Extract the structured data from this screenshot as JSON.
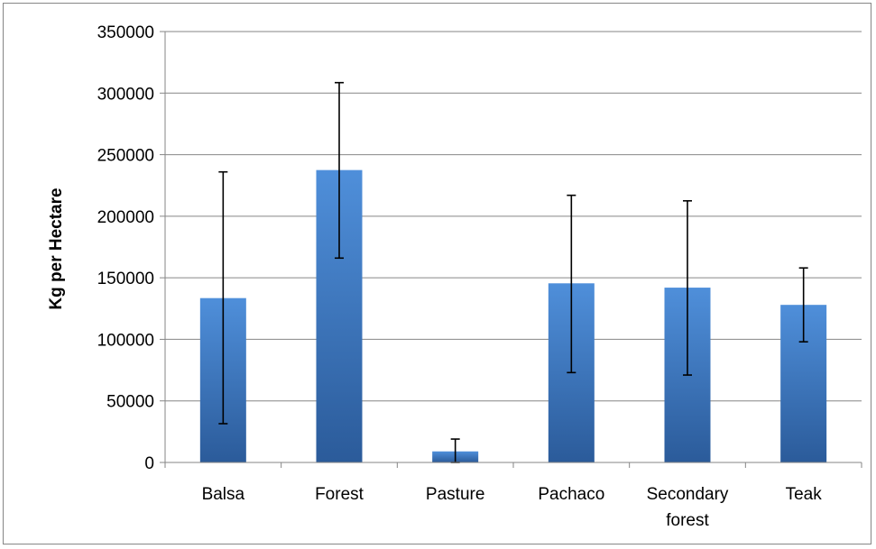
{
  "chart_data": {
    "type": "bar",
    "title": "",
    "xlabel": "",
    "ylabel": "Kg per Hectare",
    "ylim": [
      0,
      350000
    ],
    "y_ticks": [
      0,
      50000,
      100000,
      150000,
      200000,
      250000,
      300000,
      350000
    ],
    "y_tick_labels": [
      "0",
      "50000",
      "100000",
      "150000",
      "200000",
      "250000",
      "300000",
      "350000"
    ],
    "grid": true,
    "legend": "none",
    "categories": [
      "Balsa",
      "Forest",
      "Pasture",
      "Pachaco",
      "Secondary forest",
      "Teak"
    ],
    "category_label_lines": [
      [
        "Balsa"
      ],
      [
        "Forest"
      ],
      [
        "Pasture"
      ],
      [
        "Pachaco"
      ],
      [
        "Secondary",
        "forest"
      ],
      [
        "Teak"
      ]
    ],
    "values": [
      133500,
      237500,
      9000,
      145500,
      142000,
      128000
    ],
    "error_low": [
      31500,
      166000,
      0,
      73000,
      71000,
      98000
    ],
    "error_high": [
      236000,
      308500,
      19000,
      217000,
      212500,
      158000
    ],
    "colors": {
      "bar_light": "#4F8FDA",
      "bar_dark": "#2B5B9A",
      "grid": "#868686",
      "axis": "#868686",
      "error_bar": "#000000",
      "frame": "#868686"
    }
  }
}
